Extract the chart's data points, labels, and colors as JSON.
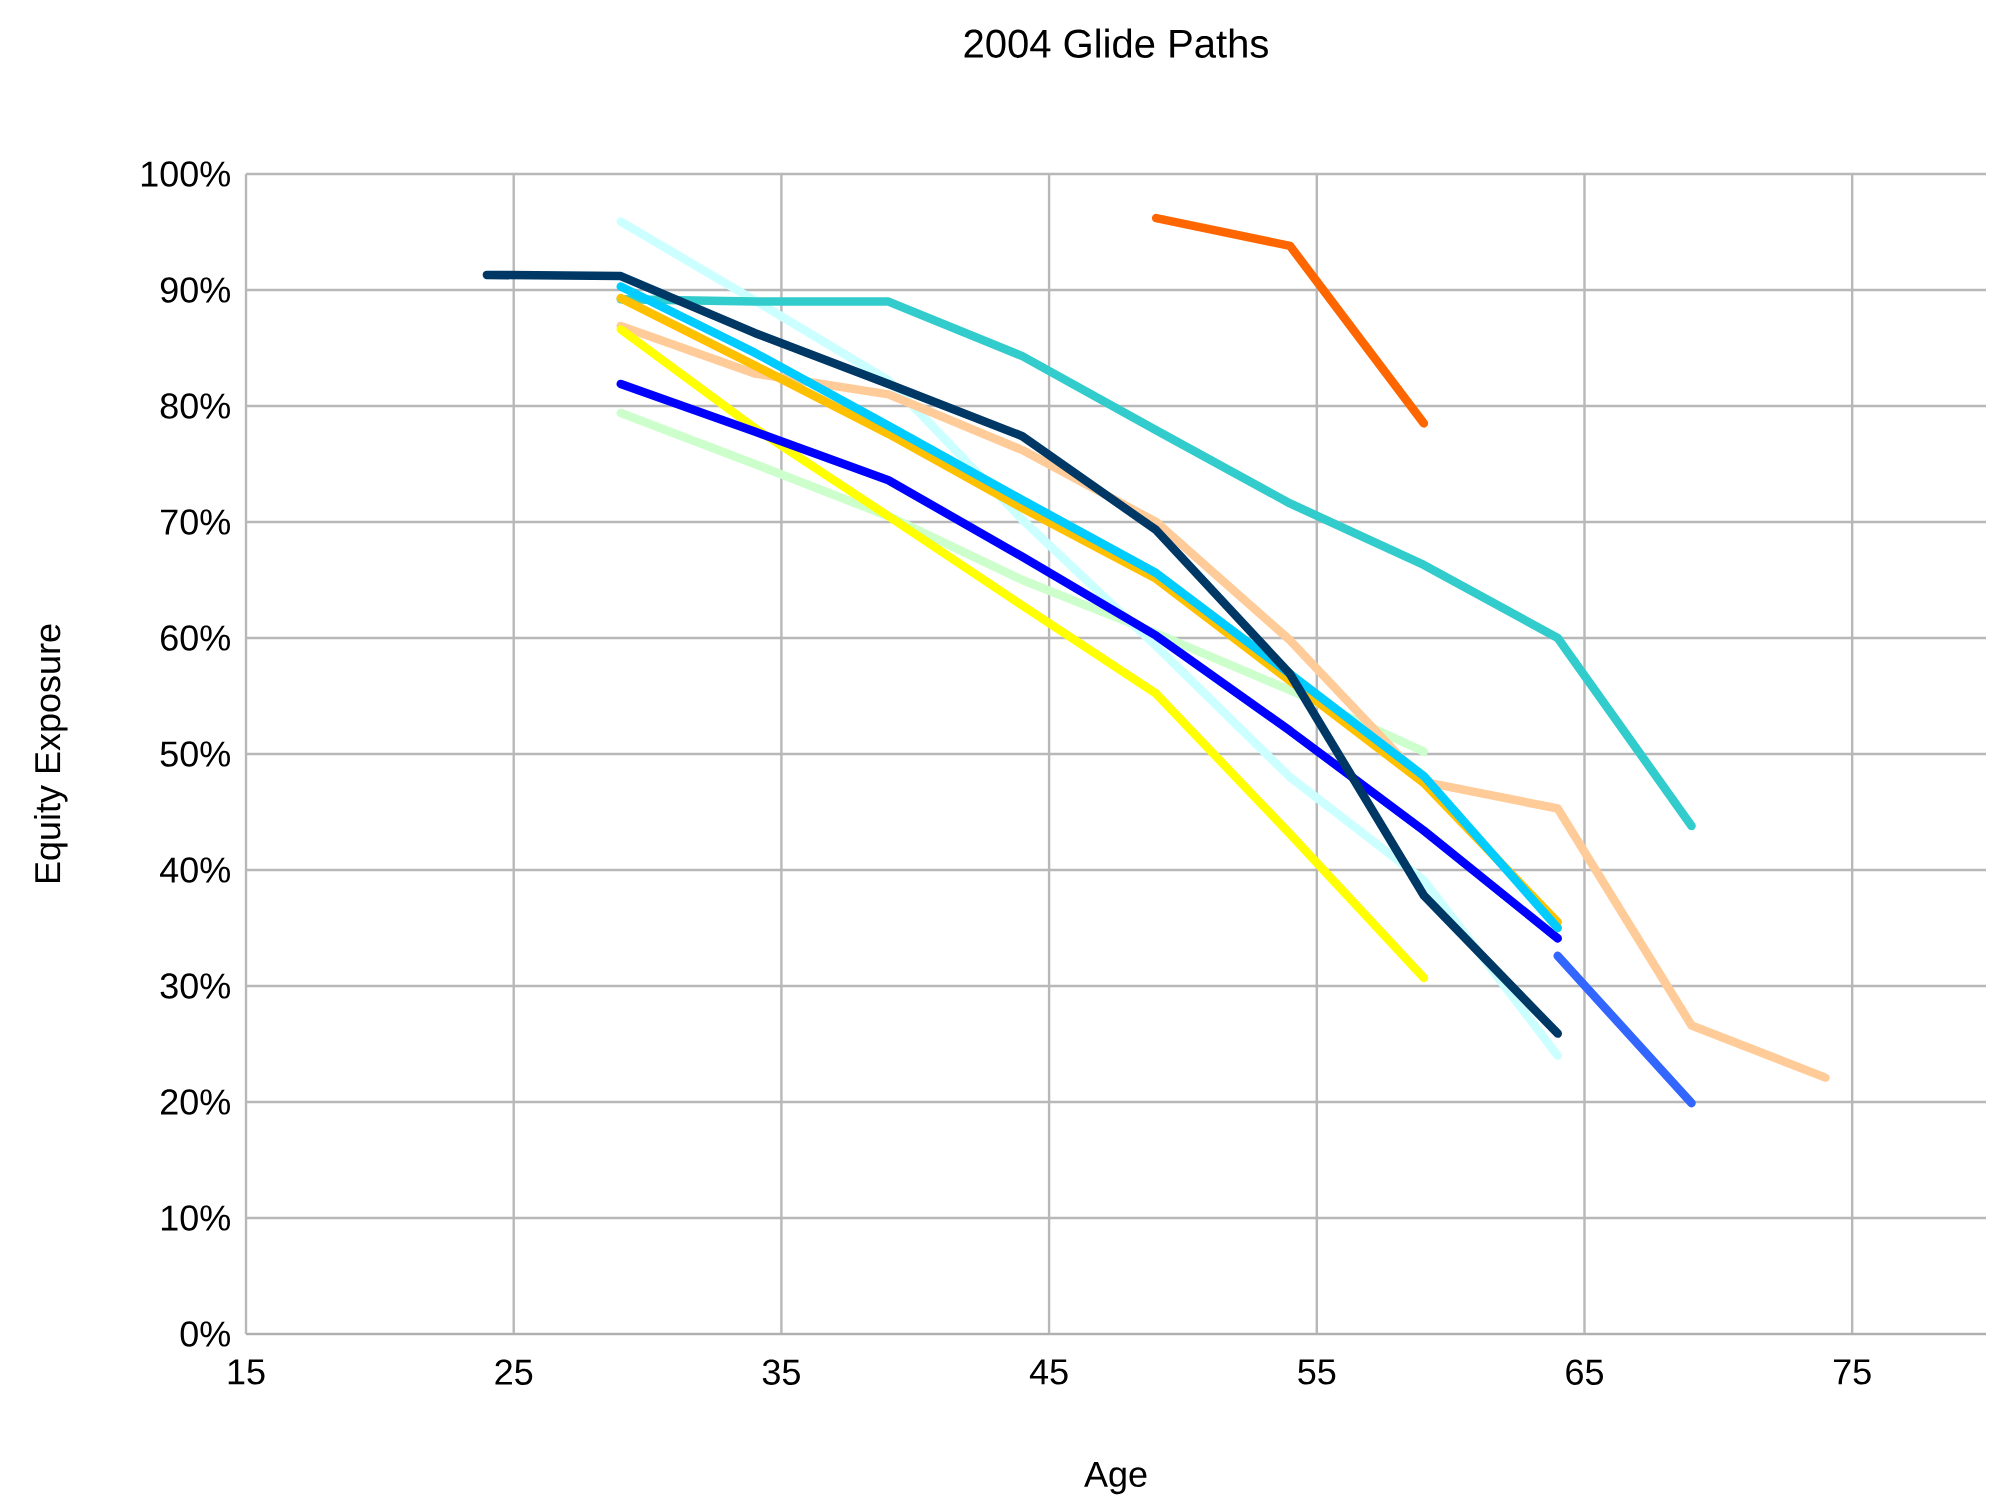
{
  "chart_data": {
    "type": "line",
    "title": "2004 Glide Paths",
    "xlabel": "Age",
    "ylabel": "Equity Exposure",
    "xlim": [
      15,
      80
    ],
    "xticks": [
      15,
      25,
      35,
      45,
      55,
      65,
      75
    ],
    "ylim": [
      0,
      100
    ],
    "yticks": [
      {
        "value": 0,
        "label": "0%"
      },
      {
        "value": 10,
        "label": "10%"
      },
      {
        "value": 20,
        "label": "20%"
      },
      {
        "value": 30,
        "label": "30%"
      },
      {
        "value": 40,
        "label": "40%"
      },
      {
        "value": 50,
        "label": "50%"
      },
      {
        "value": 60,
        "label": "60%"
      },
      {
        "value": 70,
        "label": "70%"
      },
      {
        "value": 80,
        "label": "80%"
      },
      {
        "value": 90,
        "label": "90%"
      },
      {
        "value": 100,
        "label": "100%"
      }
    ],
    "grid": true,
    "marker": "none",
    "line_style": "solid",
    "series": [
      {
        "color": "#ccffcc",
        "x": [
          29,
          34,
          39,
          44,
          49,
          54,
          59
        ],
        "values": [
          79.4,
          75,
          70.5,
          65,
          60.4,
          55.5,
          50.2
        ]
      },
      {
        "color": "#ccffff",
        "x": [
          29,
          34,
          39,
          44,
          49,
          54,
          59,
          64
        ],
        "values": [
          95.9,
          89.1,
          82.2,
          70.2,
          59.3,
          48,
          39.1,
          24
        ]
      },
      {
        "color": "#ffcc99",
        "x": [
          29,
          34,
          39,
          44,
          49,
          54,
          59,
          64,
          69,
          74
        ],
        "values": [
          86.9,
          82.8,
          81,
          76.2,
          70,
          59.8,
          47.6,
          45.3,
          26.6,
          22.1
        ]
      },
      {
        "color": "#33cccc",
        "x": [
          29,
          34,
          39,
          44,
          49,
          54,
          59,
          64,
          69
        ],
        "values": [
          89.2,
          89,
          89,
          84.3,
          77.9,
          71.6,
          66.3,
          60,
          43.8
        ]
      },
      {
        "color": "#ff6600",
        "x": [
          49,
          54,
          59
        ],
        "values": [
          96.2,
          93.8,
          78.5
        ]
      },
      {
        "color": "#ffc000",
        "x": [
          29,
          34,
          39,
          44,
          49,
          54,
          59,
          64
        ],
        "values": [
          89.3,
          83.5,
          77.6,
          71.2,
          65.1,
          56.3,
          47.5,
          35.5
        ]
      },
      {
        "color": "#ffff00",
        "x": [
          29,
          34,
          39,
          44,
          49,
          54,
          59
        ],
        "values": [
          86.6,
          78.1,
          70.5,
          62.8,
          55.2,
          43.1,
          30.7
        ]
      },
      {
        "color": "#0000ff",
        "x": [
          29,
          34,
          39,
          44,
          49,
          54,
          59,
          64
        ],
        "values": [
          81.9,
          77.8,
          73.6,
          67,
          60.2,
          52,
          43.4,
          34.1
        ]
      },
      {
        "color": "#00ccff",
        "x": [
          29,
          34,
          39,
          44,
          49,
          54,
          59,
          64
        ],
        "values": [
          90.3,
          84.6,
          78.3,
          71.9,
          65.6,
          56.9,
          48.1,
          35
        ]
      },
      {
        "color": "#3366ff",
        "x": [
          64,
          69
        ],
        "values": [
          32.6,
          19.9
        ]
      },
      {
        "color": "#003865",
        "x": [
          24,
          29,
          34,
          39,
          44,
          49,
          54,
          59,
          64
        ],
        "values": [
          91.3,
          91.2,
          86.3,
          81.9,
          77.4,
          69.3,
          56.9,
          37.8,
          25.9
        ]
      }
    ]
  }
}
